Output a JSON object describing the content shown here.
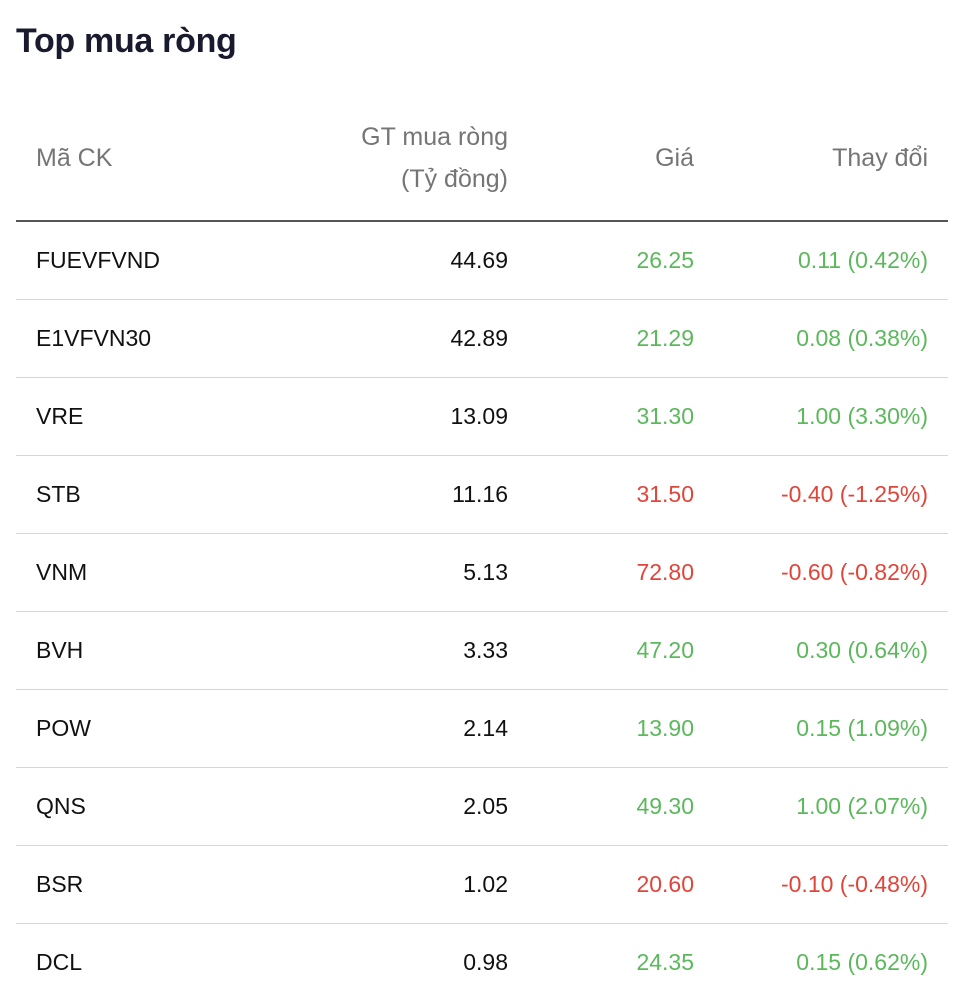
{
  "title": "Top mua ròng",
  "columns": {
    "code": "Mã CK",
    "value_line1": "GT mua ròng",
    "value_line2": "(Tỷ đồng)",
    "price": "Giá",
    "change": "Thay đổi"
  },
  "colors": {
    "up": "#5cb85c",
    "down": "#e0453a"
  },
  "rows": [
    {
      "code": "FUEVFVND",
      "value": "44.69",
      "price": "26.25",
      "change": "0.11 (0.42%)",
      "direction": "up"
    },
    {
      "code": "E1VFVN30",
      "value": "42.89",
      "price": "21.29",
      "change": "0.08 (0.38%)",
      "direction": "up"
    },
    {
      "code": "VRE",
      "value": "13.09",
      "price": "31.30",
      "change": "1.00 (3.30%)",
      "direction": "up"
    },
    {
      "code": "STB",
      "value": "11.16",
      "price": "31.50",
      "change": "-0.40 (-1.25%)",
      "direction": "down"
    },
    {
      "code": "VNM",
      "value": "5.13",
      "price": "72.80",
      "change": "-0.60 (-0.82%)",
      "direction": "down"
    },
    {
      "code": "BVH",
      "value": "3.33",
      "price": "47.20",
      "change": "0.30 (0.64%)",
      "direction": "up"
    },
    {
      "code": "POW",
      "value": "2.14",
      "price": "13.90",
      "change": "0.15 (1.09%)",
      "direction": "up"
    },
    {
      "code": "QNS",
      "value": "2.05",
      "price": "49.30",
      "change": "1.00 (2.07%)",
      "direction": "up"
    },
    {
      "code": "BSR",
      "value": "1.02",
      "price": "20.60",
      "change": "-0.10 (-0.48%)",
      "direction": "down"
    },
    {
      "code": "DCL",
      "value": "0.98",
      "price": "24.35",
      "change": "0.15 (0.62%)",
      "direction": "up"
    }
  ]
}
